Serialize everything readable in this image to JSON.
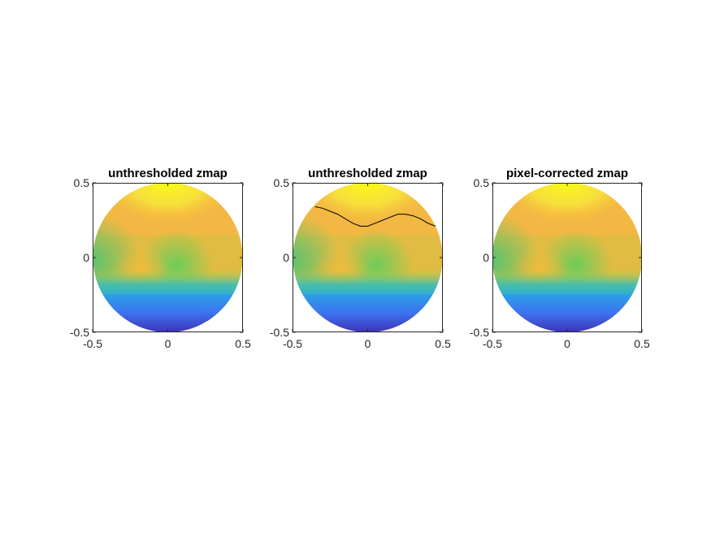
{
  "chart_data": [
    {
      "type": "heatmap",
      "title": "unthresholded zmap",
      "xlim": [
        -0.5,
        0.5
      ],
      "ylim": [
        -0.5,
        0.5
      ],
      "xticks": [
        "-0.5",
        "0",
        "0.5"
      ],
      "yticks": [
        "-0.5",
        "0",
        "0.5"
      ],
      "grid": false,
      "colormap": "parula",
      "shape": "circular topographic map",
      "contour": null
    },
    {
      "type": "heatmap",
      "title": "unthresholded zmap",
      "xlim": [
        -0.5,
        0.5
      ],
      "ylim": [
        -0.5,
        0.5
      ],
      "xticks": [
        "-0.5",
        "0",
        "0.5"
      ],
      "yticks": [
        "-0.5",
        "0",
        "0.5"
      ],
      "grid": false,
      "colormap": "parula",
      "shape": "circular topographic map",
      "contour": {
        "color": "#000000",
        "points": [
          [
            -0.35,
            0.34
          ],
          [
            -0.3,
            0.33
          ],
          [
            -0.25,
            0.31
          ],
          [
            -0.2,
            0.29
          ],
          [
            -0.15,
            0.26
          ],
          [
            -0.1,
            0.23
          ],
          [
            -0.05,
            0.21
          ],
          [
            0.0,
            0.21
          ],
          [
            0.05,
            0.23
          ],
          [
            0.1,
            0.25
          ],
          [
            0.15,
            0.27
          ],
          [
            0.2,
            0.29
          ],
          [
            0.25,
            0.29
          ],
          [
            0.3,
            0.28
          ],
          [
            0.35,
            0.26
          ],
          [
            0.4,
            0.23
          ],
          [
            0.45,
            0.21
          ]
        ]
      }
    },
    {
      "type": "heatmap",
      "title": "pixel-corrected zmap",
      "xlim": [
        -0.5,
        0.5
      ],
      "ylim": [
        -0.5,
        0.5
      ],
      "xticks": [
        "-0.5",
        "0",
        "0.5"
      ],
      "yticks": [
        "-0.5",
        "0",
        "0.5"
      ],
      "grid": false,
      "colormap": "parula",
      "shape": "circular topographic map",
      "contour": null
    }
  ]
}
